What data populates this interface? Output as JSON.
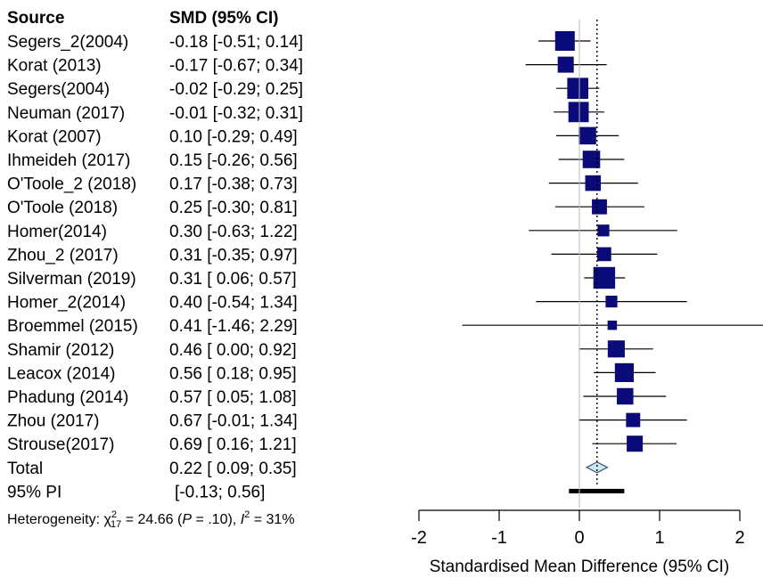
{
  "chart_data": {
    "type": "forest",
    "headers": {
      "source": "Source",
      "effect": "SMD (95% CI)"
    },
    "studies": [
      {
        "name": "Segers_2(2004)",
        "smd": -0.18,
        "lo": -0.51,
        "hi": 0.14,
        "ci_text": "-0.18 [-0.51; 0.14]",
        "weight": 1.0
      },
      {
        "name": "Korat (2013)",
        "smd": -0.17,
        "lo": -0.67,
        "hi": 0.34,
        "ci_text": "-0.17 [-0.67; 0.34]",
        "weight": 0.75
      },
      {
        "name": "Segers(2004)",
        "smd": -0.02,
        "lo": -0.29,
        "hi": 0.25,
        "ci_text": "-0.02 [-0.29; 0.25]",
        "weight": 1.1
      },
      {
        "name": "Neuman (2017)",
        "smd": -0.01,
        "lo": -0.32,
        "hi": 0.31,
        "ci_text": "-0.01 [-0.32; 0.31]",
        "weight": 1.05
      },
      {
        "name": "Korat (2007)",
        "smd": 0.1,
        "lo": -0.29,
        "hi": 0.49,
        "ci_text": "0.10 [-0.29; 0.49]",
        "weight": 0.85
      },
      {
        "name": "Ihmeideh (2017)",
        "smd": 0.15,
        "lo": -0.26,
        "hi": 0.56,
        "ci_text": "0.15 [-0.26; 0.56]",
        "weight": 0.85
      },
      {
        "name": "O'Toole_2 (2018)",
        "smd": 0.17,
        "lo": -0.38,
        "hi": 0.73,
        "ci_text": "0.17 [-0.38; 0.73]",
        "weight": 0.72
      },
      {
        "name": "O'Toole (2018)",
        "smd": 0.25,
        "lo": -0.3,
        "hi": 0.81,
        "ci_text": "0.25 [-0.30; 0.81]",
        "weight": 0.68
      },
      {
        "name": "Homer(2014)",
        "smd": 0.3,
        "lo": -0.63,
        "hi": 1.22,
        "ci_text": "0.30 [-0.63; 1.22]",
        "weight": 0.45
      },
      {
        "name": "Zhou_2 (2017)",
        "smd": 0.31,
        "lo": -0.35,
        "hi": 0.97,
        "ci_text": "0.31 [-0.35; 0.97]",
        "weight": 0.6
      },
      {
        "name": "Silverman (2019)",
        "smd": 0.31,
        "lo": 0.06,
        "hi": 0.57,
        "ci_text": "0.31 [ 0.06; 0.57]",
        "weight": 1.15
      },
      {
        "name": "Homer_2(2014)",
        "smd": 0.4,
        "lo": -0.54,
        "hi": 1.34,
        "ci_text": "0.40 [-0.54; 1.34]",
        "weight": 0.45
      },
      {
        "name": "Broemmel (2015)",
        "smd": 0.41,
        "lo": -1.46,
        "hi": 2.29,
        "ci_text": "0.41 [-1.46; 2.29]",
        "weight": 0.28
      },
      {
        "name": "Shamir (2012)",
        "smd": 0.46,
        "lo": 0.0,
        "hi": 0.92,
        "ci_text": "0.46 [ 0.00; 0.92]",
        "weight": 0.82
      },
      {
        "name": "Leacox (2014)",
        "smd": 0.56,
        "lo": 0.18,
        "hi": 0.95,
        "ci_text": "0.56 [ 0.18; 0.95]",
        "weight": 0.95
      },
      {
        "name": "Phadung (2014)",
        "smd": 0.57,
        "lo": 0.05,
        "hi": 1.08,
        "ci_text": "0.57 [ 0.05; 1.08]",
        "weight": 0.78
      },
      {
        "name": "Zhou (2017)",
        "smd": 0.67,
        "lo": -0.01,
        "hi": 1.34,
        "ci_text": "0.67 [-0.01; 1.34]",
        "weight": 0.62
      },
      {
        "name": "Strouse(2017)",
        "smd": 0.69,
        "lo": 0.16,
        "hi": 1.21,
        "ci_text": "0.69 [ 0.16; 1.21]",
        "weight": 0.75
      }
    ],
    "total": {
      "name": "Total",
      "smd": 0.22,
      "lo": 0.09,
      "hi": 0.35,
      "ci_text": "0.22 [ 0.09; 0.35]"
    },
    "prediction_interval": {
      "name": "95% PI",
      "lo": -0.13,
      "hi": 0.56,
      "ci_text": "[-0.13; 0.56]"
    },
    "heterogeneity": {
      "prefix": "Heterogeneity: χ",
      "sup": "2",
      "sub": "17",
      "stat_text": " = 24.66 (",
      "p_label": "P",
      "p_text": " = .10), ",
      "i_label": "I",
      "i_sup": "2",
      "i_text": " = 31%"
    },
    "xlabel": "Standardised Mean Difference (95% CI)",
    "xlim": [
      -2,
      2
    ],
    "xticks": [
      -2,
      -1,
      0,
      1,
      2
    ],
    "xtick_labels": [
      "-2",
      "-1",
      "0",
      "1",
      "2"
    ],
    "reference_line": 0.22,
    "colors": {
      "square": "#0a0a78",
      "diamond_fill": "#cfe8ee",
      "diamond_stroke": "#3a5a78",
      "ci_line": "#000000"
    }
  }
}
